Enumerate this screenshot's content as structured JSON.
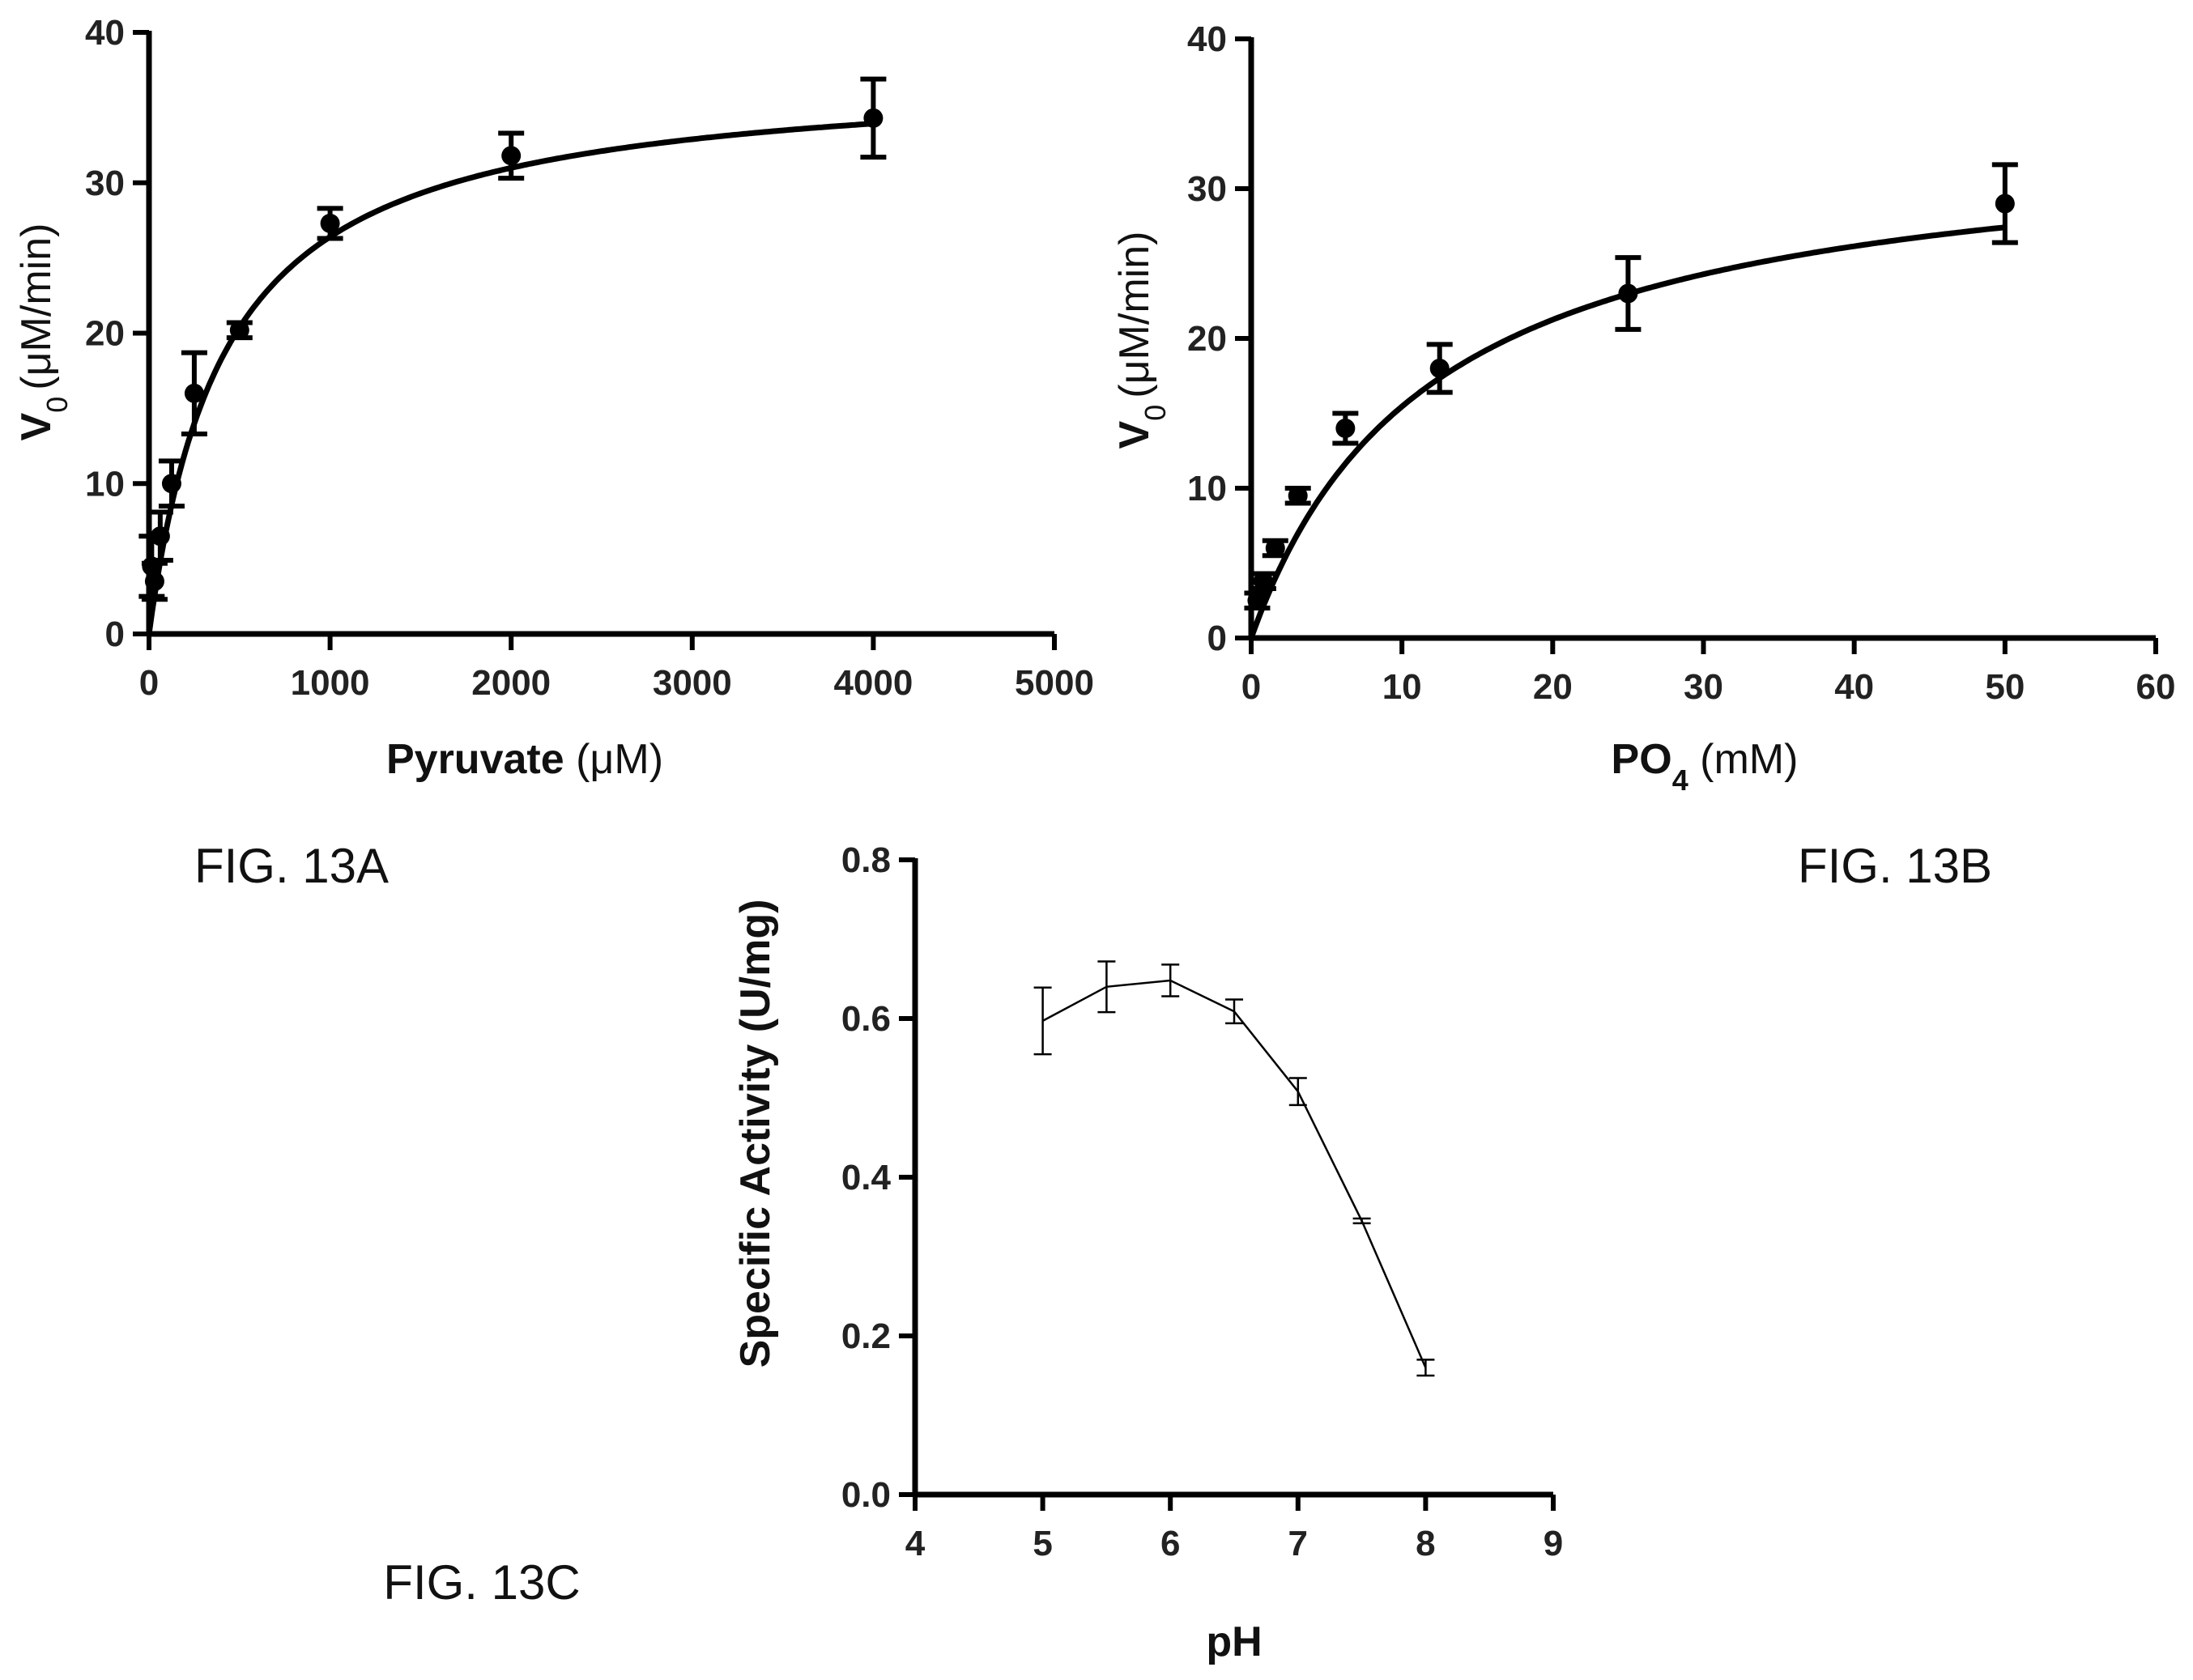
{
  "chart_data": [
    {
      "type": "scatter",
      "figure_label": "FIG. 13A",
      "xlabel": {
        "main": "Pyruvate",
        "unit": " (μM)"
      },
      "ylabel": {
        "sym": "V",
        "sub": "0",
        "unit": "(μM/min)"
      },
      "xlim": [
        0,
        5000
      ],
      "ylim": [
        0,
        40
      ],
      "xticks": [
        0,
        1000,
        2000,
        3000,
        4000,
        5000
      ],
      "xtick_labels": [
        "0",
        "1000",
        "2000",
        "3000",
        "4000",
        "5000"
      ],
      "yticks": [
        0,
        10,
        20,
        30,
        40
      ],
      "ytick_labels": [
        "0",
        "10",
        "20",
        "30",
        "40"
      ],
      "series": [
        {
          "x": [
            15,
            31,
            62,
            125,
            250,
            500,
            1000,
            2000,
            4000
          ],
          "y": [
            4.5,
            3.5,
            6.5,
            10.0,
            16.0,
            20.2,
            27.3,
            31.8,
            34.3
          ],
          "err": [
            2.0,
            1.2,
            1.6,
            1.5,
            2.7,
            0.5,
            1.0,
            1.5,
            2.6
          ]
        }
      ],
      "fit": {
        "model": "michaelis-menten",
        "vmax": 37.5,
        "km": 420
      }
    },
    {
      "type": "scatter",
      "figure_label": "FIG. 13B",
      "xlabel": {
        "main": "PO",
        "sub": "4",
        "unit": " (mM)"
      },
      "ylabel": {
        "sym": "V",
        "sub": "0",
        "unit": "(μM/min)"
      },
      "xlim": [
        0,
        60
      ],
      "ylim": [
        0,
        40
      ],
      "xticks": [
        0,
        10,
        20,
        30,
        40,
        50,
        60
      ],
      "xtick_labels": [
        "0",
        "10",
        "20",
        "30",
        "40",
        "50",
        "60"
      ],
      "yticks": [
        0,
        10,
        20,
        30,
        40
      ],
      "ytick_labels": [
        "0",
        "10",
        "20",
        "30",
        "40"
      ],
      "series": [
        {
          "x": [
            0.4,
            0.8,
            1.6,
            3.1,
            6.25,
            12.5,
            25,
            50
          ],
          "y": [
            2.5,
            3.8,
            6.0,
            9.5,
            14.0,
            18.0,
            23.0,
            29.0
          ],
          "err": [
            0.5,
            0.5,
            0.5,
            0.5,
            1.0,
            1.6,
            2.4,
            2.6
          ]
        }
      ],
      "fit": {
        "model": "michaelis-menten",
        "vmax": 34,
        "km": 12
      }
    },
    {
      "type": "line",
      "figure_label": "FIG. 13C",
      "xlabel": {
        "main": "pH"
      },
      "ylabel": {
        "main": "Specific Activity (U/mg)"
      },
      "xlim": [
        4,
        9
      ],
      "ylim": [
        0,
        0.8
      ],
      "xticks": [
        4,
        5,
        6,
        7,
        8,
        9
      ],
      "xtick_labels": [
        "4",
        "5",
        "6",
        "7",
        "8",
        "9"
      ],
      "yticks": [
        0,
        0.2,
        0.4,
        0.6,
        0.8
      ],
      "ytick_labels": [
        "0.0",
        "0.2",
        "0.4",
        "0.6",
        "0.8"
      ],
      "series": [
        {
          "x": [
            5,
            5.5,
            6,
            6.5,
            7,
            7.5,
            8
          ],
          "y": [
            0.597,
            0.64,
            0.648,
            0.609,
            0.508,
            0.345,
            0.16
          ],
          "err": [
            0.042,
            0.032,
            0.02,
            0.015,
            0.017,
            0.003,
            0.01
          ]
        }
      ]
    }
  ]
}
